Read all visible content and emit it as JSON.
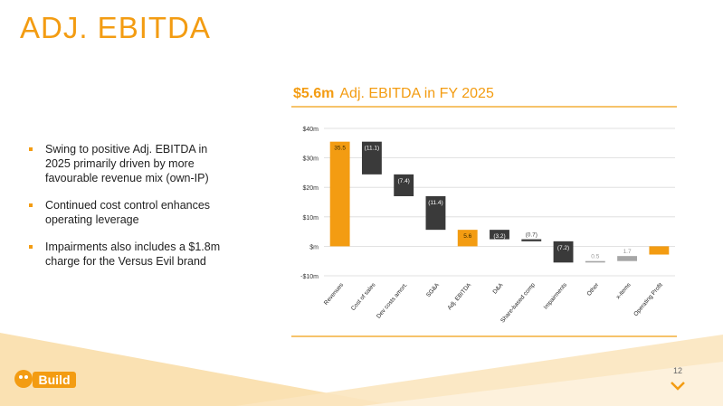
{
  "slide": {
    "title": "ADJ. EBITDA",
    "subtitle_value": "$5.6m",
    "subtitle_text": "Adj. EBITDA in FY 2025",
    "page_number": "12",
    "logo_text": "Build"
  },
  "bullets": [
    "Swing to positive Adj. EBITDA in 2025 primarily driven by more favourable revenue mix (own-IP)",
    "Continued cost control enhances operating leverage",
    "Impairments also includes a $1.8m charge for the Versus Evil brand"
  ],
  "colors": {
    "accent": "#f39c12",
    "dark": "#3a3a3a",
    "grey": "#a6a6a6"
  },
  "chart_data": {
    "type": "bar",
    "subtype": "waterfall",
    "title": "",
    "xlabel": "",
    "ylabel": "",
    "ylim": [
      -10,
      40
    ],
    "yticks": [
      -10,
      0,
      10,
      20,
      30,
      40
    ],
    "ytick_labels": [
      "-$10m",
      "$m",
      "$10m",
      "$20m",
      "$30m",
      "$40m"
    ],
    "grid": true,
    "categories": [
      "Revenues",
      "Cost of sales",
      "Dev costs amort.",
      "SG&A",
      "Adj. EBITDA",
      "D&A",
      "Share-based comp",
      "Impairments",
      "Other",
      "x-items",
      "Operating Profit"
    ],
    "values": [
      35.5,
      -11.1,
      -7.4,
      -11.4,
      5.6,
      -3.2,
      -0.7,
      -7.2,
      0.5,
      1.7,
      -2.8
    ],
    "data_labels": [
      "35.5",
      "(11.1)",
      "(7.4)",
      "(11.4)",
      "5.6",
      "(3.2)",
      "(0.7)",
      "(7.2)",
      "0.5",
      "1.7",
      "(2.8)"
    ],
    "bar_kinds": [
      "total",
      "delta",
      "delta",
      "delta",
      "total",
      "delta",
      "delta",
      "delta",
      "delta",
      "delta",
      "total"
    ]
  }
}
